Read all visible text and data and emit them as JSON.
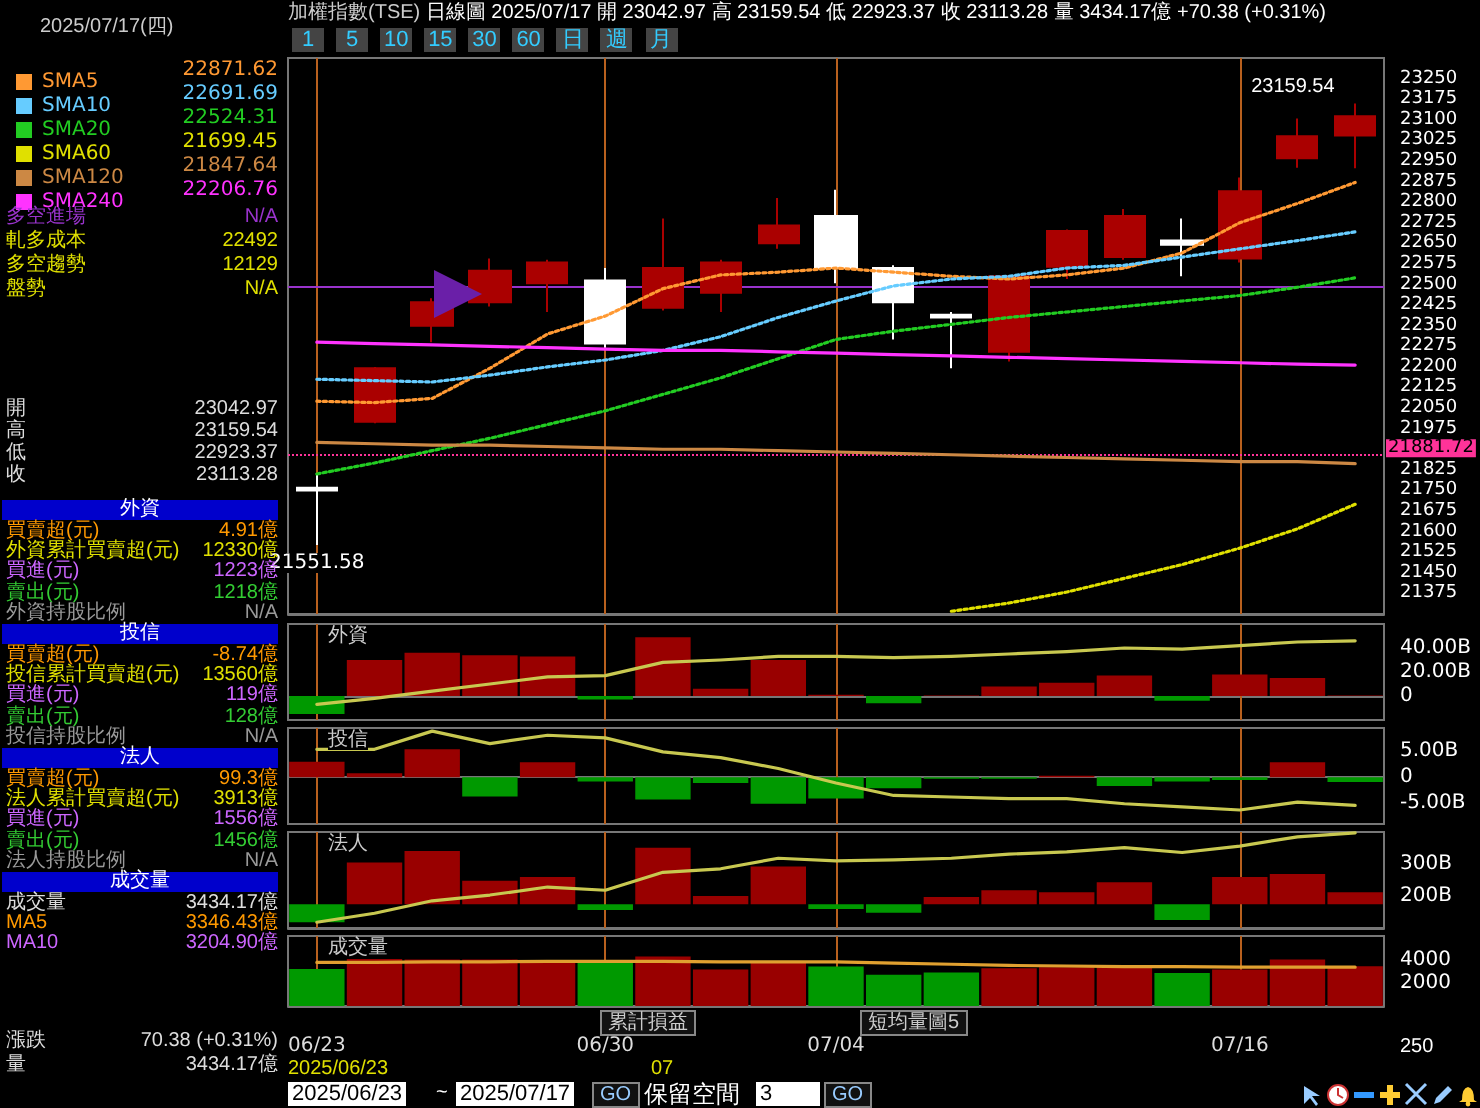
{
  "chart_data": [
    {
      "type": "candlestick",
      "title": "加權指數(TSE)",
      "subtitle": "日線圖  2025/07/17  開 23042.97  高 23159.54  低 22923.37  收 23113.28  量 3434.17億  +70.38 (+0.31%)",
      "categories": [
        "06/23",
        null,
        null,
        null,
        null,
        "06/30",
        null,
        null,
        null,
        "07/04",
        null,
        null,
        null,
        null,
        null,
        null,
        "07/16",
        null,
        null
      ],
      "ohlc": [
        [
          21760,
          21808,
          21551.58,
          21750
        ],
        [
          22000,
          22200,
          21995,
          22195
        ],
        [
          22350,
          22450,
          22290,
          22435
        ],
        [
          22435,
          22595,
          22420,
          22550
        ],
        [
          22505,
          22590,
          22400,
          22580
        ],
        [
          22515,
          22560,
          22270,
          22285
        ],
        [
          22415,
          22740,
          22405,
          22560
        ],
        [
          22470,
          22590,
          22400,
          22580
        ],
        [
          22650,
          22815,
          22630,
          22715
        ],
        [
          22750,
          22845,
          22505,
          22560
        ],
        [
          22560,
          22570,
          22300,
          22435
        ],
        [
          22390,
          22400,
          22195,
          22380
        ],
        [
          22255,
          22535,
          22220,
          22530
        ],
        [
          22565,
          22700,
          22520,
          22695
        ],
        [
          22600,
          22775,
          22590,
          22750
        ],
        [
          22660,
          22740,
          22530,
          22645
        ],
        [
          22595,
          22890,
          22580,
          22840
        ],
        [
          22960,
          23105,
          22925,
          23040
        ],
        [
          23042.97,
          23159.54,
          22923.37,
          23113.28
        ]
      ],
      "colors": [
        "#ffffff",
        "#aa0000",
        "#aa0000",
        "#aa0000",
        "#aa0000",
        "#ffffff",
        "#aa0000",
        "#aa0000",
        "#aa0000",
        "#ffffff",
        "#ffffff",
        "#ffffff",
        "#aa0000",
        "#aa0000",
        "#aa0000",
        "#ffffff",
        "#aa0000",
        "#aa0000",
        "#aa0000"
      ],
      "series": [
        {
          "type": "line",
          "name": "SMA5",
          "color": "#ff9933",
          "line_style": "dotted",
          "values": [
            22075,
            22070,
            22085,
            22195,
            22320,
            22385,
            22485,
            22535,
            22545,
            22560,
            22545,
            22530,
            22520,
            22535,
            22560,
            22615,
            22725,
            22795,
            22871.62
          ]
        },
        {
          "type": "line",
          "name": "SMA10",
          "color": "#66ccff",
          "line_style": "dotted",
          "values": [
            22155,
            22150,
            22145,
            22170,
            22200,
            22225,
            22260,
            22310,
            22380,
            22440,
            22495,
            22520,
            22530,
            22560,
            22570,
            22600,
            22630,
            22660,
            22691.69
          ]
        },
        {
          "type": "line",
          "name": "SMA20",
          "color": "#22cc22",
          "line_style": "dotted",
          "values": [
            21810,
            21850,
            21895,
            21940,
            21990,
            22040,
            22100,
            22160,
            22230,
            22300,
            22330,
            22355,
            22380,
            22400,
            22420,
            22440,
            22460,
            22490,
            22524.31
          ]
        },
        {
          "type": "line",
          "name": "SMA60",
          "color": "#e0e000",
          "line_style": "dotted",
          "values": [
            null,
            null,
            null,
            null,
            null,
            null,
            null,
            null,
            null,
            null,
            null,
            21310,
            21340,
            21380,
            21430,
            21480,
            21540,
            21610,
            21699.45
          ]
        },
        {
          "type": "line",
          "name": "SMA120",
          "color": "#cc8844",
          "line_style": "solid",
          "values": [
            21925,
            21920,
            21915,
            21915,
            21910,
            21905,
            21900,
            21900,
            21895,
            21890,
            21885,
            21880,
            21875,
            21870,
            21865,
            21860,
            21855,
            21855,
            21847.64
          ]
        },
        {
          "type": "line",
          "name": "SMA240",
          "color": "#ff33ff",
          "line_style": "solid",
          "values": [
            22290,
            22285,
            22280,
            22275,
            22270,
            22265,
            22260,
            22260,
            22255,
            22250,
            22245,
            22240,
            22235,
            22230,
            22225,
            22220,
            22215,
            22210,
            22206.76
          ]
        }
      ],
      "ylim": [
        21300,
        23325
      ],
      "yticks": [
        21375,
        21450,
        21525,
        21600,
        21675,
        21750,
        21825,
        21975,
        22050,
        22125,
        22200,
        22275,
        22350,
        22425,
        22500,
        22575,
        22650,
        22725,
        22800,
        22875,
        22950,
        23025,
        23100,
        23175,
        23250
      ],
      "tick_labels": "y",
      "legend": "left",
      "marker": "none",
      "ref_lines": [
        {
          "axis": "x",
          "value": "06/23",
          "color": "#b8601e"
        },
        {
          "axis": "x",
          "value": "06/30",
          "color": "#b8601e"
        },
        {
          "axis": "x",
          "value": "07/04",
          "color": "#b8601e"
        },
        {
          "axis": "x",
          "value": "07/16",
          "color": "#b8601e"
        },
        {
          "axis": "y",
          "value": 21881.72,
          "label": "21881.72",
          "color": "#ff3399",
          "line_style": "dotted"
        },
        {
          "axis": "y",
          "value": 22492,
          "color": "#9933cc"
        }
      ],
      "annotations": [
        "2025/07/17(四)",
        "22871.62",
        "22691.69",
        "22524.31",
        "21699.45",
        "21847.64",
        "22206.76",
        "多空進場",
        "N/A",
        "軋多成本",
        "22492",
        "多空趨勢",
        "12129",
        "盤勢",
        "N/A",
        "開",
        "23042.97",
        "高",
        "23159.54",
        "低",
        "22923.37",
        "收",
        "23113.28",
        "1 5 10 15 30 60 日 週 月",
        "23159.54",
        {
          "text": "21551.58",
          "x": "06/23",
          "y": 21551.58
        }
      ]
    },
    {
      "type": "bar",
      "title": "外資",
      "categories": [
        "06/23",
        null,
        null,
        null,
        null,
        "06/30",
        null,
        null,
        null,
        "07/04",
        null,
        null,
        null,
        null,
        null,
        null,
        "07/16",
        null,
        null
      ],
      "series": [
        {
          "type": "bar",
          "values": [
            -15,
            30,
            36,
            34,
            33,
            -3,
            49,
            6,
            30,
            1,
            -6,
            0.5,
            8,
            11,
            17,
            -4,
            18,
            15,
            0.49
          ],
          "colors": [
            "#009900",
            "#990000",
            "#990000",
            "#990000",
            "#990000",
            "#009900",
            "#990000",
            "#990000",
            "#990000",
            "#990000",
            "#009900",
            "#990000",
            "#990000",
            "#990000",
            "#990000",
            "#009900",
            "#990000",
            "#990000",
            "#990000"
          ]
        },
        {
          "type": "line",
          "color": "#c8c850",
          "values": [
            -7,
            -2,
            4,
            10,
            16,
            17,
            28,
            30,
            33,
            33,
            32,
            33,
            35,
            37,
            40,
            39,
            42,
            45,
            46
          ]
        }
      ],
      "ylim": [
        -20,
        60
      ],
      "yticks": [
        0,
        {
          "value": 20,
          "label": "20.00B"
        },
        {
          "value": 40,
          "label": "40.00B"
        }
      ],
      "tick_labels": "y",
      "marker": "none",
      "ref_lines": [
        {
          "axis": "x",
          "value": "06/23",
          "color": "#b8601e"
        },
        {
          "axis": "x",
          "value": "06/30",
          "color": "#b8601e"
        },
        {
          "axis": "x",
          "value": "07/04",
          "color": "#b8601e"
        },
        {
          "axis": "x",
          "value": "07/16",
          "color": "#b8601e"
        }
      ],
      "annotations": [
        "買賣超(元)",
        "4.91億",
        "外資累計買賣超(元)",
        "12330億",
        "買進(元)",
        "1223億",
        "賣出(元)",
        "1218億",
        "外資持股比例",
        "N/A"
      ]
    },
    {
      "type": "bar",
      "title": "投信",
      "categories": [
        "06/23",
        null,
        null,
        null,
        null,
        "06/30",
        null,
        null,
        null,
        "07/04",
        null,
        null,
        null,
        null,
        null,
        null,
        "07/16",
        null,
        null
      ],
      "series": [
        {
          "type": "bar",
          "values": [
            3.0,
            0.8,
            5.4,
            -3.7,
            2.9,
            -0.8,
            -4.3,
            -1.1,
            -5.1,
            -4.1,
            -2.1,
            -0.3,
            -0.3,
            0.3,
            -1.7,
            -0.8,
            -0.5,
            2.9,
            -0.9
          ],
          "colors": [
            "#990000",
            "#990000",
            "#990000",
            "#009900",
            "#990000",
            "#009900",
            "#009900",
            "#009900",
            "#009900",
            "#009900",
            "#009900",
            "#009900",
            "#009900",
            "#990000",
            "#009900",
            "#009900",
            "#009900",
            "#990000",
            "#009900"
          ]
        },
        {
          "type": "line",
          "color": "#c8c850",
          "values": [
            5.4,
            5.4,
            8.9,
            6.5,
            8.1,
            7.6,
            4.9,
            3.8,
            1.7,
            -1.1,
            -3.5,
            -3.8,
            -4.1,
            -4.1,
            -5.1,
            -5.7,
            -6.3,
            -4.8,
            -5.4
          ]
        }
      ],
      "ylim": [
        -9,
        9.5
      ],
      "yticks": [
        {
          "value": -5,
          "label": "-5.00B"
        },
        0,
        {
          "value": 5,
          "label": "5.00B"
        }
      ],
      "tick_labels": "y",
      "marker": "none",
      "ref_lines": [
        {
          "axis": "x",
          "value": "06/23",
          "color": "#b8601e"
        },
        {
          "axis": "x",
          "value": "06/30",
          "color": "#b8601e"
        },
        {
          "axis": "x",
          "value": "07/04",
          "color": "#b8601e"
        },
        {
          "axis": "x",
          "value": "07/16",
          "color": "#b8601e"
        }
      ],
      "annotations": [
        "買賣超(元)",
        "-8.74億",
        "投信累計買賣超(元)",
        "13560億",
        "買進(元)",
        "119億",
        "賣出(元)",
        "128億",
        "投信持股比例",
        "N/A"
      ]
    },
    {
      "type": "bar",
      "title": "法人",
      "categories": [
        "06/23",
        null,
        null,
        null,
        null,
        "06/30",
        null,
        null,
        null,
        "07/04",
        null,
        null,
        null,
        null,
        null,
        null,
        "07/16",
        null,
        null
      ],
      "series": [
        {
          "type": "bar",
          "base": [
            174,
            174,
            174,
            174,
            174,
            174,
            174,
            174,
            174,
            174,
            174,
            174,
            174,
            174,
            174,
            174,
            174,
            174,
            174
          ],
          "values": [
            -56,
            131,
            167,
            74,
            85,
            -18,
            177,
            26,
            118,
            -15,
            -26,
            23,
            44,
            38,
            69,
            -49,
            85,
            95,
            38
          ],
          "colors": [
            "#009900",
            "#990000",
            "#990000",
            "#990000",
            "#990000",
            "#009900",
            "#990000",
            "#990000",
            "#990000",
            "#009900",
            "#009900",
            "#990000",
            "#990000",
            "#990000",
            "#990000",
            "#009900",
            "#990000",
            "#990000",
            "#990000"
          ]
        },
        {
          "type": "line",
          "color": "#c8c850",
          "values": [
            118,
            146,
            185,
            203,
            228,
            218,
            274,
            285,
            318,
            310,
            313,
            318,
            331,
            338,
            351,
            336,
            356,
            385,
            397
          ]
        }
      ],
      "ylim": [
        100,
        400
      ],
      "yticks": [
        {
          "value": 200,
          "label": "200B"
        },
        {
          "value": 300,
          "label": "300B"
        }
      ],
      "tick_labels": "y",
      "marker": "none",
      "ref_lines": [
        {
          "axis": "x",
          "value": "06/23",
          "color": "#b8601e"
        },
        {
          "axis": "x",
          "value": "06/30",
          "color": "#b8601e"
        },
        {
          "axis": "x",
          "value": "07/04",
          "color": "#b8601e"
        },
        {
          "axis": "x",
          "value": "07/16",
          "color": "#b8601e"
        }
      ],
      "annotations": [
        "買賣超(元)",
        "99.3億",
        "法人累計買賣超(元)",
        "3913億",
        "買進(元)",
        "1556億",
        "賣出(元)",
        "1456億",
        "法人持股比例",
        "N/A"
      ]
    },
    {
      "type": "bar",
      "title": "成交量",
      "categories": [
        "06/23",
        null,
        null,
        null,
        null,
        "06/30",
        null,
        null,
        null,
        "07/04",
        null,
        null,
        null,
        null,
        null,
        null,
        "07/16",
        null,
        null
      ],
      "series": [
        {
          "type": "bar",
          "values": [
            3200,
            4050,
            4000,
            4000,
            3850,
            3800,
            4250,
            3150,
            3850,
            3400,
            2700,
            2900,
            3250,
            3350,
            3350,
            2850,
            3150,
            4000,
            3434.17
          ],
          "colors": [
            "#009900",
            "#990000",
            "#990000",
            "#990000",
            "#990000",
            "#009900",
            "#990000",
            "#990000",
            "#990000",
            "#009900",
            "#009900",
            "#009900",
            "#990000",
            "#990000",
            "#990000",
            "#009900",
            "#990000",
            "#990000",
            "#990000"
          ]
        },
        {
          "type": "line",
          "color": "#e0a030",
          "values": [
            3750,
            3750,
            3800,
            3800,
            3850,
            3850,
            3850,
            3800,
            3800,
            3800,
            3700,
            3600,
            3500,
            3450,
            3400,
            3400,
            3350,
            3350,
            3346.43
          ]
        }
      ],
      "ylim": [
        50,
        6000
      ],
      "yticks": [
        2000,
        4000
      ],
      "marker": "none",
      "ref_lines": [
        {
          "axis": "x",
          "value": "06/23",
          "color": "#b8601e"
        },
        {
          "axis": "x",
          "value": "06/30",
          "color": "#b8601e"
        },
        {
          "axis": "x",
          "value": "07/04",
          "color": "#b8601e"
        },
        {
          "axis": "x",
          "value": "07/16",
          "color": "#b8601e"
        }
      ],
      "annotations": [
        "成交量",
        "3434.17億",
        "MA5",
        "3346.43億",
        "MA10",
        "3204.90億",
        "漲跌",
        "70.38 (+0.31%)",
        "量",
        "3434.17億",
        "2025/06/23",
        "07",
        "250",
        "累計損益",
        "短均量圖5",
        "2025/06/23",
        "~",
        "2025/07/17",
        "GO",
        "保留空間",
        "3",
        "GO"
      ]
    }
  ]
}
